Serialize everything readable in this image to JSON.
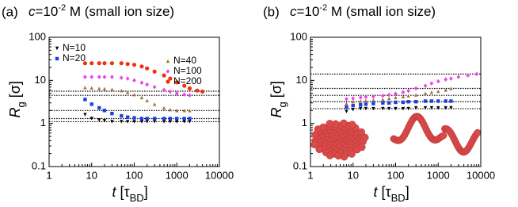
{
  "chart_data": [
    {
      "type": "scatter",
      "panel_label": "(a)",
      "title": [
        "c",
        "=10",
        "-2",
        " M (small ion size)"
      ],
      "xlabel": [
        "t",
        " [τ",
        "BD",
        "]"
      ],
      "ylabel": [
        "R",
        "g",
        " [σ]"
      ],
      "xscale": "log",
      "yscale": "log",
      "xlim": [
        1,
        10000
      ],
      "ylim": [
        0.1,
        100
      ],
      "xticks": [
        1,
        10,
        100,
        1000,
        10000
      ],
      "yticks": [
        0.1,
        1,
        10,
        100
      ],
      "reference_lines": [
        1.1,
        1.3,
        2.0,
        4.5,
        5.6
      ],
      "legend": true,
      "series": [
        {
          "name": "N=10",
          "color": "#000000",
          "marker": "v",
          "x": [
            7,
            10,
            15,
            20,
            30,
            50,
            70,
            100,
            150,
            200,
            300,
            500,
            700,
            1000,
            1500,
            2000
          ],
          "values": [
            1.6,
            1.3,
            1.2,
            1.15,
            1.1,
            1.1,
            1.1,
            1.1,
            1.1,
            1.1,
            1.1,
            1.1,
            1.1,
            1.1,
            1.1,
            1.1
          ]
        },
        {
          "name": "N=20",
          "color": "#1f3fe0",
          "marker": "s",
          "x": [
            7,
            10,
            15,
            20,
            30,
            50,
            70,
            100,
            150,
            200,
            300,
            500,
            700,
            1000,
            1500,
            2000
          ],
          "values": [
            3.6,
            2.8,
            2.3,
            2.0,
            1.7,
            1.5,
            1.4,
            1.35,
            1.3,
            1.3,
            1.3,
            1.3,
            1.3,
            1.3,
            1.3,
            1.3
          ]
        },
        {
          "name": "N=40",
          "color": "#a0703a",
          "marker": "^",
          "x": [
            7,
            10,
            15,
            20,
            30,
            50,
            70,
            100,
            150,
            200,
            300,
            500,
            700,
            1000,
            1500,
            2000
          ],
          "values": [
            6.8,
            6.7,
            6.5,
            6.4,
            6.2,
            5.8,
            5.3,
            4.7,
            4.0,
            3.4,
            2.8,
            2.3,
            2.1,
            2.0,
            2.0,
            2.0
          ]
        },
        {
          "name": "N=100",
          "color": "#ee44ee",
          "marker": "D",
          "x": [
            7,
            10,
            15,
            20,
            30,
            50,
            70,
            100,
            150,
            200,
            300,
            500,
            700,
            1000,
            1500,
            2000
          ],
          "values": [
            12,
            12,
            12,
            12,
            12,
            11.5,
            11,
            10,
            8.8,
            8,
            7,
            6,
            5.5,
            5.0,
            4.7,
            4.5
          ]
        },
        {
          "name": "N=200",
          "color": "#ee3311",
          "marker": "o",
          "x": [
            7,
            10,
            15,
            20,
            30,
            50,
            70,
            100,
            150,
            200,
            300,
            500,
            700,
            1000,
            1500,
            2000,
            3000,
            4000
          ],
          "values": [
            25,
            25,
            25,
            25,
            25,
            25,
            24,
            23,
            21,
            19,
            16,
            13,
            11,
            9,
            7.5,
            6.5,
            5.8,
            5.5
          ]
        }
      ]
    },
    {
      "type": "scatter",
      "panel_label": "(b)",
      "title": [
        "c",
        "=10",
        "-2",
        " M (small ion size)"
      ],
      "xlabel": [
        "t",
        " [τ",
        "BD",
        "]"
      ],
      "ylabel": [
        "R",
        "g",
        " [σ]"
      ],
      "xscale": "log",
      "yscale": "log",
      "xlim": [
        1,
        10000
      ],
      "ylim": [
        0.1,
        100
      ],
      "xticks": [
        1,
        10,
        100,
        1000,
        10000
      ],
      "yticks": [
        0.1,
        1,
        10,
        100
      ],
      "reference_lines": [
        2.2,
        3.2,
        4.5,
        6.5,
        14
      ],
      "legend": false,
      "series": [
        {
          "color": "#000000",
          "marker": "v",
          "x": [
            7,
            10,
            15,
            20,
            30,
            50,
            70,
            100,
            150,
            200,
            300,
            500,
            700,
            1000,
            1500,
            2000
          ],
          "values": [
            1.9,
            2.1,
            2.2,
            2.2,
            2.2,
            2.2,
            2.2,
            2.2,
            2.2,
            2.2,
            2.3,
            2.3,
            2.3,
            2.3,
            2.3,
            2.3
          ]
        },
        {
          "color": "#1f3fe0",
          "marker": "s",
          "x": [
            7,
            10,
            15,
            20,
            30,
            50,
            70,
            100,
            150,
            200,
            300,
            500,
            700,
            1000,
            1500,
            2000
          ],
          "values": [
            2.4,
            2.6,
            2.7,
            2.8,
            2.9,
            3.0,
            3.0,
            3.1,
            3.1,
            3.2,
            3.2,
            3.3,
            3.3,
            3.3,
            3.3,
            3.3
          ]
        },
        {
          "color": "#a0703a",
          "marker": "^",
          "x": [
            7,
            10,
            15,
            20,
            30,
            50,
            70,
            100,
            150,
            200,
            300,
            500,
            700,
            1000,
            1500,
            2000
          ],
          "values": [
            2.9,
            3.2,
            3.3,
            3.4,
            3.5,
            3.6,
            3.8,
            4.0,
            4.2,
            4.4,
            4.6,
            5.0,
            5.3,
            5.6,
            6.0,
            6.5
          ]
        },
        {
          "color": "#ee44ee",
          "marker": "D",
          "x": [
            7,
            10,
            15,
            20,
            30,
            50,
            70,
            100,
            150,
            200,
            300,
            500,
            700,
            1000,
            1500,
            2000,
            3000,
            5000,
            8000
          ],
          "values": [
            3.7,
            3.8,
            4.0,
            4.1,
            4.2,
            4.4,
            4.6,
            4.9,
            5.3,
            5.7,
            6.5,
            7.5,
            8.5,
            9.5,
            10.5,
            11,
            12,
            13,
            14
          ]
        }
      ]
    }
  ]
}
